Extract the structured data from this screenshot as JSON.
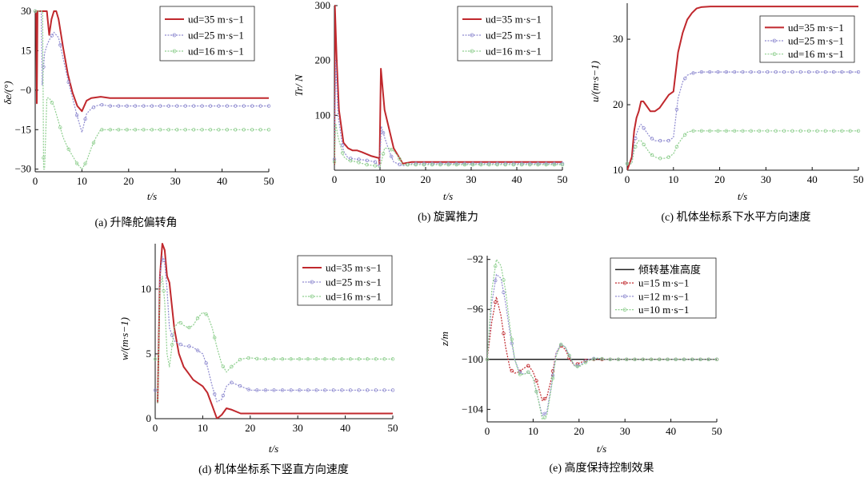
{
  "colors": {
    "red": "#c0282d",
    "purple": "#8f8bd0",
    "green": "#8fcf8f",
    "black": "#222222"
  },
  "chart_data": [
    {
      "id": "a",
      "type": "line",
      "caption": "(a) 升降舵偏转角",
      "ylabel": "δe/(°)",
      "xlabel": "t/s",
      "xlim": [
        0,
        50
      ],
      "ylim": [
        -31,
        30
      ],
      "xticks": [
        0,
        10,
        20,
        30,
        40,
        50
      ],
      "yticks": [
        30,
        15,
        0,
        -15,
        -30
      ],
      "yticklabels": [
        "30",
        "15",
        "−0",
        "−15",
        "−30"
      ],
      "legend": [
        "ud=35 m·s−1",
        "ud=25 m·s−1",
        "ud=16 m·s−1"
      ],
      "series": [
        {
          "name": "ud=35 m·s−1",
          "color": "red",
          "style": "solid",
          "width": 2,
          "x": [
            0,
            0.2,
            0.35,
            0.5,
            1.5,
            2.5,
            3,
            3.5,
            4,
            4.5,
            5,
            6,
            7,
            8,
            9,
            10,
            11,
            12,
            14,
            16,
            20,
            30,
            40,
            50
          ],
          "y": [
            30,
            30,
            -5,
            30,
            30,
            30,
            21,
            27,
            30,
            30,
            27,
            16,
            6,
            -1,
            -6,
            -8,
            -4,
            -3,
            -2.5,
            -3,
            -3,
            -3,
            -3,
            -3
          ]
        },
        {
          "name": "ud=25 m·s−1",
          "color": "purple",
          "style": "dotted",
          "width": 1.2,
          "x": [
            0,
            0.8,
            1.3,
            1.5,
            2,
            2.5,
            3,
            4,
            5,
            6,
            7,
            8,
            9,
            10,
            11,
            12,
            13,
            14,
            16,
            20,
            30,
            40,
            50
          ],
          "y": [
            30,
            30,
            30,
            2,
            14,
            17,
            19,
            22,
            20,
            12,
            4,
            -3,
            -10,
            -16,
            -9,
            -7,
            -6,
            -5.5,
            -6,
            -6,
            -6,
            -6,
            -6
          ]
        },
        {
          "name": "ud=16 m·s−1",
          "color": "green",
          "style": "dotted",
          "width": 1.2,
          "x": [
            0,
            1.0,
            1.6,
            1.8,
            2,
            2.5,
            3,
            4,
            5,
            6,
            7,
            8,
            9,
            10,
            11,
            12,
            13,
            14,
            16,
            20,
            30,
            40,
            50
          ],
          "y": [
            30,
            30,
            30,
            -30,
            -30,
            -3,
            -3,
            -6,
            -12,
            -18,
            -22,
            -25,
            -28,
            -30,
            -27,
            -22,
            -18,
            -15,
            -15,
            -15,
            -15,
            -15,
            -15
          ]
        }
      ]
    },
    {
      "id": "b",
      "type": "line",
      "caption": "(b) 旋翼推力",
      "ylabel": "Tr/ N",
      "xlabel": "t/s",
      "xlim": [
        0,
        50
      ],
      "ylim": [
        0,
        300
      ],
      "xticks": [
        0,
        10,
        20,
        30,
        40,
        50
      ],
      "yticks": [
        100,
        200,
        300
      ],
      "yticklabels": [
        "100",
        "200",
        "300"
      ],
      "legend": [
        "ud=35 m·s−1",
        "ud=25 m·s−1",
        "ud=16 m·s−1"
      ],
      "series": [
        {
          "name": "ud=35 m·s−1",
          "color": "red",
          "style": "solid",
          "width": 2,
          "x": [
            0,
            0.1,
            0.5,
            1,
            2,
            3,
            4,
            5,
            6,
            8,
            9.8,
            9.9,
            10.2,
            11,
            12,
            13,
            15,
            17,
            20,
            30,
            40,
            50
          ],
          "y": [
            10,
            300,
            200,
            110,
            50,
            40,
            36,
            36,
            33,
            26,
            22,
            10,
            185,
            110,
            75,
            40,
            12,
            15,
            15,
            15,
            15,
            15
          ]
        },
        {
          "name": "ud=25 m·s−1",
          "color": "purple",
          "style": "dotted",
          "width": 1.2,
          "x": [
            0,
            0.3,
            0.8,
            1.5,
            2,
            3,
            5,
            7,
            9,
            9.9,
            10.3,
            11,
            12,
            13,
            15,
            17,
            20,
            30,
            40,
            50
          ],
          "y": [
            20,
            200,
            100,
            60,
            35,
            22,
            20,
            18,
            15,
            5,
            80,
            60,
            35,
            15,
            8,
            12,
            12,
            12,
            12,
            12
          ]
        },
        {
          "name": "ud=16 m·s−1",
          "color": "green",
          "style": "dotted",
          "width": 1.2,
          "x": [
            0,
            0.3,
            0.8,
            1.5,
            2,
            3,
            5,
            7,
            9,
            10,
            11,
            12,
            13,
            14,
            15,
            17,
            20,
            30,
            40,
            50
          ],
          "y": [
            15,
            85,
            60,
            40,
            25,
            18,
            15,
            10,
            8,
            5,
            40,
            40,
            35,
            25,
            10,
            10,
            10,
            10,
            10,
            10
          ]
        }
      ]
    },
    {
      "id": "c",
      "type": "line",
      "caption": "(c) 机体坐标系下水平方向速度",
      "ylabel": "u/(m·s−1)",
      "xlabel": "t/s",
      "xlim": [
        0,
        50
      ],
      "ylim": [
        10,
        35.5
      ],
      "xticks": [
        0,
        10,
        20,
        30,
        40,
        50
      ],
      "yticks": [
        10,
        20,
        30
      ],
      "yticklabels": [
        "10",
        "20",
        "30"
      ],
      "legend": [
        "ud=35 m·s−1",
        "ud=25 m·s−1",
        "ud=16 m·s−1"
      ],
      "series": [
        {
          "name": "ud=35 m·s−1",
          "color": "red",
          "style": "solid",
          "width": 2,
          "x": [
            0,
            1,
            1.5,
            2,
            2.5,
            3,
            3.5,
            4,
            5,
            6,
            7,
            8,
            9,
            10,
            10.5,
            11,
            12,
            13,
            14,
            15,
            16,
            18,
            20,
            30,
            40,
            50
          ],
          "y": [
            10,
            12,
            16,
            18,
            19,
            20.5,
            20.5,
            20,
            19,
            19,
            19.5,
            20.5,
            21.5,
            22,
            25,
            28,
            31,
            33,
            34,
            34.7,
            34.9,
            35,
            35,
            35,
            35,
            35
          ]
        },
        {
          "name": "ud=25 m·s−1",
          "color": "purple",
          "style": "dotted",
          "width": 1.2,
          "x": [
            0,
            1,
            1.5,
            2,
            2.5,
            3,
            4,
            5,
            6,
            7,
            8,
            9,
            10,
            10.5,
            11,
            12,
            13,
            14,
            16,
            20,
            30,
            40,
            50
          ],
          "y": [
            11,
            11,
            14,
            15.5,
            16.5,
            17,
            16,
            15,
            14.5,
            14.5,
            14.5,
            14.5,
            15,
            18,
            21,
            23.5,
            24.5,
            24.8,
            25,
            25,
            25,
            25,
            25
          ]
        },
        {
          "name": "ud=16 m·s−1",
          "color": "green",
          "style": "dotted",
          "width": 1.2,
          "x": [
            0,
            1,
            1.5,
            2,
            2.5,
            3,
            4,
            5,
            6,
            7,
            8,
            9,
            10,
            11,
            12,
            13,
            14,
            16,
            20,
            30,
            40,
            50
          ],
          "y": [
            11,
            11,
            13,
            14,
            14.5,
            14.5,
            13.5,
            12.5,
            12,
            11.8,
            11.8,
            12,
            12.5,
            14,
            15,
            15.8,
            16,
            16,
            16,
            16,
            16,
            16
          ]
        }
      ]
    },
    {
      "id": "d",
      "type": "line",
      "caption": "(d) 机体坐标系下竖直方向速度",
      "ylabel": "w/(m·s−1)",
      "xlabel": "t/s",
      "xlim": [
        0,
        50
      ],
      "ylim": [
        0,
        13.5
      ],
      "xticks": [
        0,
        10,
        20,
        30,
        40,
        50
      ],
      "yticks": [
        0,
        5,
        10
      ],
      "yticklabels": [
        "0",
        "5",
        "10"
      ],
      "legend": [
        "ud=35 m·s−1",
        "ud=25 m·s−1",
        "ud=16 m·s−1"
      ],
      "series": [
        {
          "name": "ud=35 m·s−1",
          "color": "red",
          "style": "solid",
          "width": 2,
          "x": [
            0.5,
            1,
            1.5,
            2,
            2.5,
            3,
            4,
            5,
            6,
            7,
            8,
            10,
            11,
            12,
            13,
            14,
            15,
            16,
            18,
            20,
            22,
            25,
            30,
            40,
            50
          ],
          "y": [
            1.2,
            11,
            13.5,
            13,
            11,
            10.5,
            7,
            5,
            4,
            3.5,
            3,
            2.5,
            2,
            1,
            0,
            0.3,
            0.8,
            0.7,
            0.4,
            0.4,
            0.4,
            0.4,
            0.4,
            0.4,
            0.4
          ]
        },
        {
          "name": "ud=25 m·s−1",
          "color": "purple",
          "style": "dotted",
          "width": 1.2,
          "x": [
            0.5,
            1,
            1.5,
            2,
            2.5,
            3,
            4,
            5,
            6,
            7,
            8,
            10,
            11,
            12,
            13,
            14,
            15,
            16,
            18,
            20,
            22,
            25,
            30,
            40,
            50
          ],
          "y": [
            1.2,
            11,
            12.5,
            12,
            10,
            7,
            6,
            5.8,
            5.6,
            5.6,
            5.5,
            5,
            4,
            2.5,
            1.3,
            1.5,
            2.5,
            2.8,
            2.5,
            2.2,
            2.2,
            2.2,
            2.2,
            2.2,
            2.2
          ]
        },
        {
          "name": "ud=16 m·s−1",
          "color": "green",
          "style": "dotted",
          "width": 1.2,
          "x": [
            0.5,
            1,
            1.5,
            2,
            2.5,
            3,
            4,
            5,
            6,
            7,
            8,
            9,
            10,
            11,
            12,
            13,
            14,
            15,
            16,
            18,
            20,
            22,
            25,
            30,
            40,
            50
          ],
          "y": [
            1.2,
            10,
            11,
            9,
            5,
            4,
            7,
            7.5,
            7.2,
            7,
            7.2,
            7.8,
            8.2,
            8,
            7,
            5.5,
            4.2,
            3.6,
            4,
            4.6,
            4.7,
            4.6,
            4.6,
            4.6,
            4.6,
            4.6
          ]
        }
      ]
    },
    {
      "id": "e",
      "type": "line",
      "caption": "(e) 高度保持控制效果",
      "ylabel": "z/m",
      "xlabel": "t/s",
      "xlim": [
        0,
        50
      ],
      "ylim": [
        -105,
        -91.7
      ],
      "xticks": [
        0,
        10,
        20,
        30,
        40,
        50
      ],
      "yticks": [
        -92,
        -96,
        -100,
        -104
      ],
      "yticklabels": [
        "−92",
        "−96",
        "−100",
        "−104"
      ],
      "legend": [
        "倾转基准高度",
        "u=15 m·s−1",
        "u=12 m·s−1",
        "u=10 m·s−1"
      ],
      "series": [
        {
          "name": "倾转基准高度",
          "color": "black",
          "style": "solid",
          "width": 1.5,
          "x": [
            0,
            50
          ],
          "y": [
            -100,
            -100
          ]
        },
        {
          "name": "u=15 m·s−1",
          "color": "red",
          "style": "dotted",
          "width": 1.2,
          "x": [
            0,
            1,
            2,
            3,
            4,
            5,
            6,
            7,
            8,
            9,
            10,
            11,
            12,
            13,
            14,
            15,
            16,
            17,
            18,
            19,
            20,
            22,
            24,
            26,
            30,
            40,
            50
          ],
          "y": [
            -100,
            -97,
            -95,
            -96.5,
            -99,
            -100.8,
            -101.1,
            -101,
            -100.7,
            -100.5,
            -101,
            -102,
            -103.3,
            -103,
            -101.5,
            -99.5,
            -98.9,
            -99.2,
            -100,
            -100.5,
            -100.3,
            -100,
            -100,
            -100,
            -100,
            -100,
            -100
          ]
        },
        {
          "name": "u=12 m·s−1",
          "color": "purple",
          "style": "dotted",
          "width": 1.2,
          "x": [
            0,
            1,
            2,
            3,
            4,
            5,
            6,
            7,
            8,
            9,
            10,
            11,
            12,
            13,
            14,
            15,
            16,
            17,
            18,
            19,
            20,
            22,
            24,
            26,
            30,
            40,
            50
          ],
          "y": [
            -100,
            -95.5,
            -93.2,
            -93.5,
            -95.5,
            -98,
            -100,
            -101,
            -101.2,
            -101,
            -101.5,
            -103,
            -104.5,
            -104.2,
            -102,
            -99.5,
            -98.8,
            -99,
            -99.8,
            -100.5,
            -100.5,
            -100,
            -99.9,
            -100,
            -100,
            -100,
            -100
          ]
        },
        {
          "name": "u=10 m·s−1",
          "color": "green",
          "style": "dotted",
          "width": 1.2,
          "x": [
            0,
            1,
            2,
            3,
            4,
            5,
            6,
            7,
            8,
            9,
            10,
            11,
            12,
            13,
            14,
            15,
            16,
            17,
            18,
            19,
            20,
            22,
            24,
            26,
            30,
            40,
            50
          ],
          "y": [
            -100,
            -94.5,
            -92,
            -92.5,
            -94.5,
            -97.5,
            -100,
            -101.2,
            -101.2,
            -101,
            -101.5,
            -103,
            -104.8,
            -104.5,
            -102.2,
            -99.8,
            -98.8,
            -99,
            -99.8,
            -100.5,
            -100.6,
            -100.1,
            -99.9,
            -100,
            -100,
            -100,
            -100
          ]
        }
      ]
    }
  ]
}
